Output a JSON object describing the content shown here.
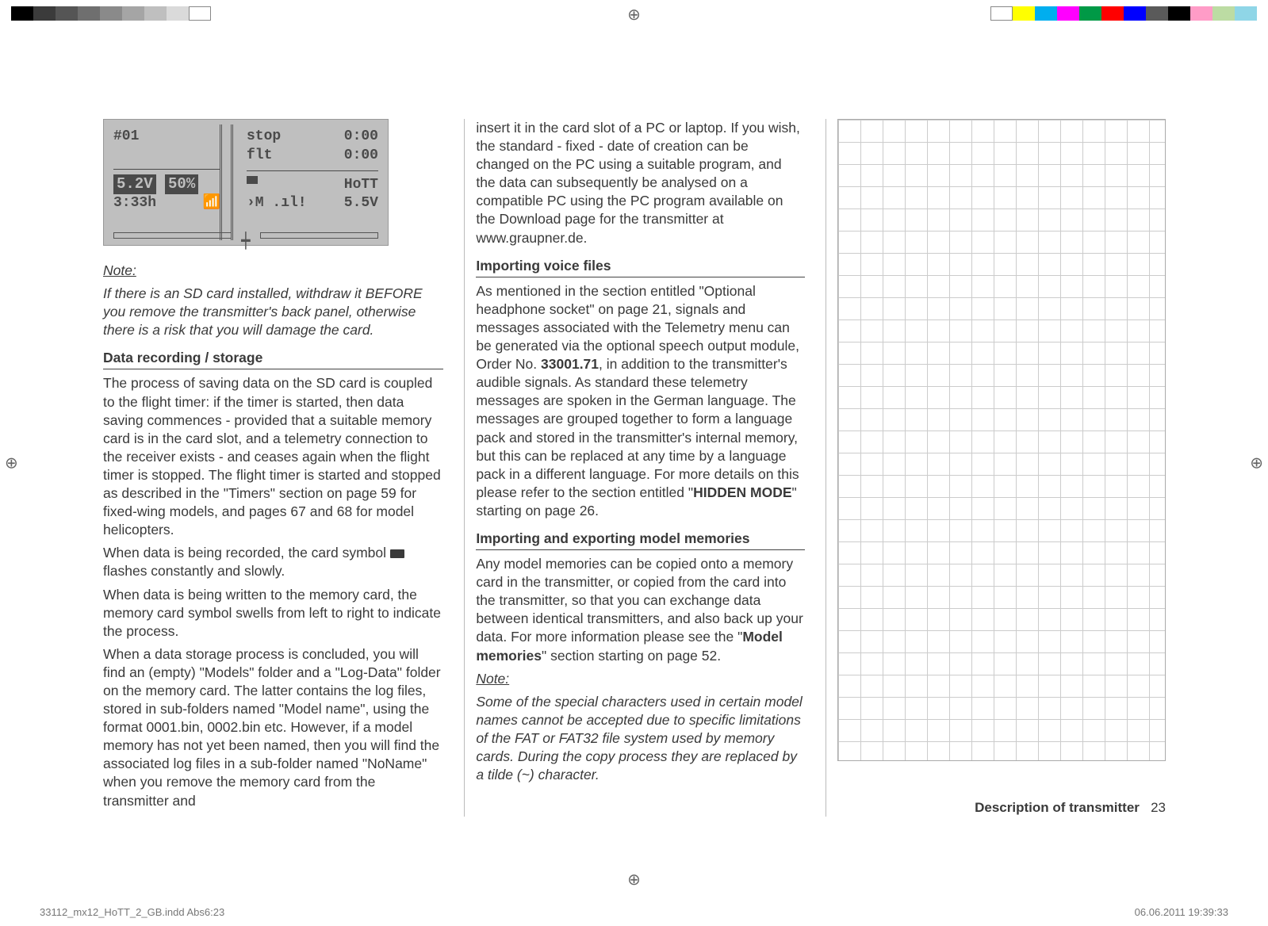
{
  "colorbar_left": [
    "#000000",
    "#3b3b3b",
    "#555555",
    "#6f6f6f",
    "#8a8a8a",
    "#a5a5a5",
    "#bfbfbf",
    "#dadada",
    "#ffffff"
  ],
  "colorbar_right": [
    "#ffffff",
    "#ffff00",
    "#00aeef",
    "#ff00ff",
    "#009946",
    "#ff0000",
    "#0000ff",
    "#5a5a5a",
    "#000000",
    "#ff9cc7",
    "#bcdca3",
    "#8fd6e7"
  ],
  "lcd": {
    "model": "#01",
    "voltage_box": "5.2V",
    "percent_box": "50%",
    "time": "3:33h",
    "stop_label": "stop",
    "stop_val": "0:00",
    "flt_label": "flt",
    "flt_val": "0:00",
    "hott": "HoTT",
    "rx_v": "5.5V"
  },
  "col1": {
    "note_label": "Note:",
    "note_text": "If there is an SD card installed, withdraw it BEFORE you remove the transmitter's back panel, otherwise there is a risk that you will damage the card.",
    "h1": "Data recording / storage",
    "p1": "The process of saving data on the SD card is coupled to the flight timer: if the timer is started, then data saving commences - provided that a suitable memory card is in the card slot, and a telemetry connection to the receiver exists - and ceases again when the flight timer is stopped. The flight timer is started and stopped as described in the \"Timers\" section on page 59 for fixed-wing models, and pages 67 and 68 for model helicopters.",
    "p2a": "When data is being recorded, the card symbol ",
    "p2b": " flashes constantly and slowly.",
    "p3": "When data is being written to the memory card, the memory card symbol swells from left to right to indicate the process.",
    "p4": "When a data storage process is concluded, you will find an (empty) \"Models\" folder and a \"Log-Data\" folder on the memory card. The latter contains the log files, stored in sub-folders named \"Model name\", using the format 0001.bin, 0002.bin etc. However, if a model memory has not yet been named, then you will find the associated log files in a sub-folder named \"NoName\" when you remove the memory card from the transmitter and"
  },
  "col2": {
    "p0": "insert it in the card slot of a PC or laptop. If you wish, the standard - fixed - date of creation can be changed on the PC using a suitable program, and the data can subsequently be analysed on a compatible PC using the PC program available on the Download page for the transmitter at www.graupner.de.",
    "h1": "Importing voice files",
    "p1a": "As mentioned in the section entitled \"Optional headphone socket\" on page 21, signals and messages associated with the Telemetry menu can be generated via the optional speech output module, Order No. ",
    "order_no": "33001.71",
    "p1b": ", in addition to the transmitter's audible signals. As standard these telemetry messages are spoken in the German language. The messages are grouped together to form a language pack and stored in the transmitter's internal memory, but this can be replaced at any time by a language pack in a different language. For more details on this please refer to the section entitled \"",
    "hidden_mode": "HIDDEN MODE",
    "p1c": "\" starting on page 26.",
    "h2": "Importing and exporting model memories",
    "p2a": "Any model memories can be copied onto a memory card in the transmitter, or copied from the card into the transmitter, so that you can exchange data between identical transmitters, and also back up your data. For more information please see the \"",
    "model_mem": "Model memories",
    "p2b": "\" section starting on page 52.",
    "note_label": "Note:",
    "note_text": "Some of the special characters used in certain model names cannot be accepted due to specific limitations of the FAT or FAT32 file system used by memory cards. During the copy process they are replaced by a tilde (~) character."
  },
  "footer": {
    "section": "Description of transmitter",
    "page": "23",
    "file": "33112_mx12_HoTT_2_GB.indd   Abs6:23",
    "date": "06.06.2011   19:39:33"
  }
}
